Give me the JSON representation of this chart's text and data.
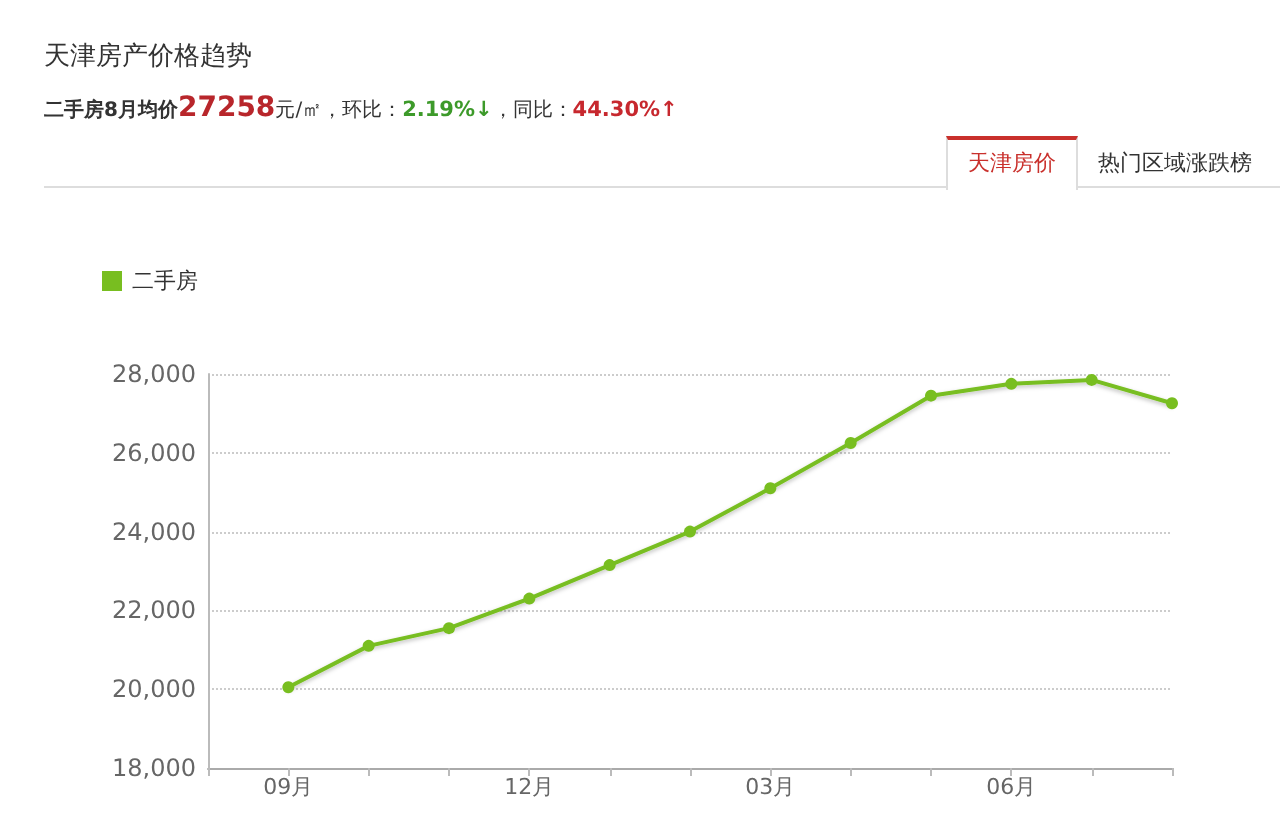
{
  "chart_data": {
    "type": "line",
    "title": "天津房产价格趋势",
    "subtitle": "二手房8月均价27258元/㎡，环比：2.19%↓，同比：44.30%↑",
    "annotations": [
      "天津房价",
      "热门区域涨跌榜"
    ],
    "categories": [
      null,
      "09月",
      null,
      null,
      "12月",
      null,
      null,
      "03月",
      null,
      null,
      "06月",
      null,
      null
    ],
    "series": [
      {
        "name": "二手房",
        "color": "#78be20",
        "values": [
          null,
          20050,
          21100,
          21550,
          22300,
          23150,
          24000,
          25100,
          26250,
          27450,
          27750,
          27850,
          27258
        ]
      }
    ],
    "ylim": [
      18000,
      28000
    ],
    "yticks": [
      {
        "value": 18000,
        "label": "18,000"
      },
      {
        "value": 20000,
        "label": "20,000"
      },
      {
        "value": 22000,
        "label": "22,000"
      },
      {
        "value": 24000,
        "label": "24,000"
      },
      {
        "value": 26000,
        "label": "26,000"
      },
      {
        "value": 28000,
        "label": "28,000"
      }
    ],
    "grid": "y",
    "legend": "top left",
    "marker": "circle",
    "line_style": "solid"
  }
}
